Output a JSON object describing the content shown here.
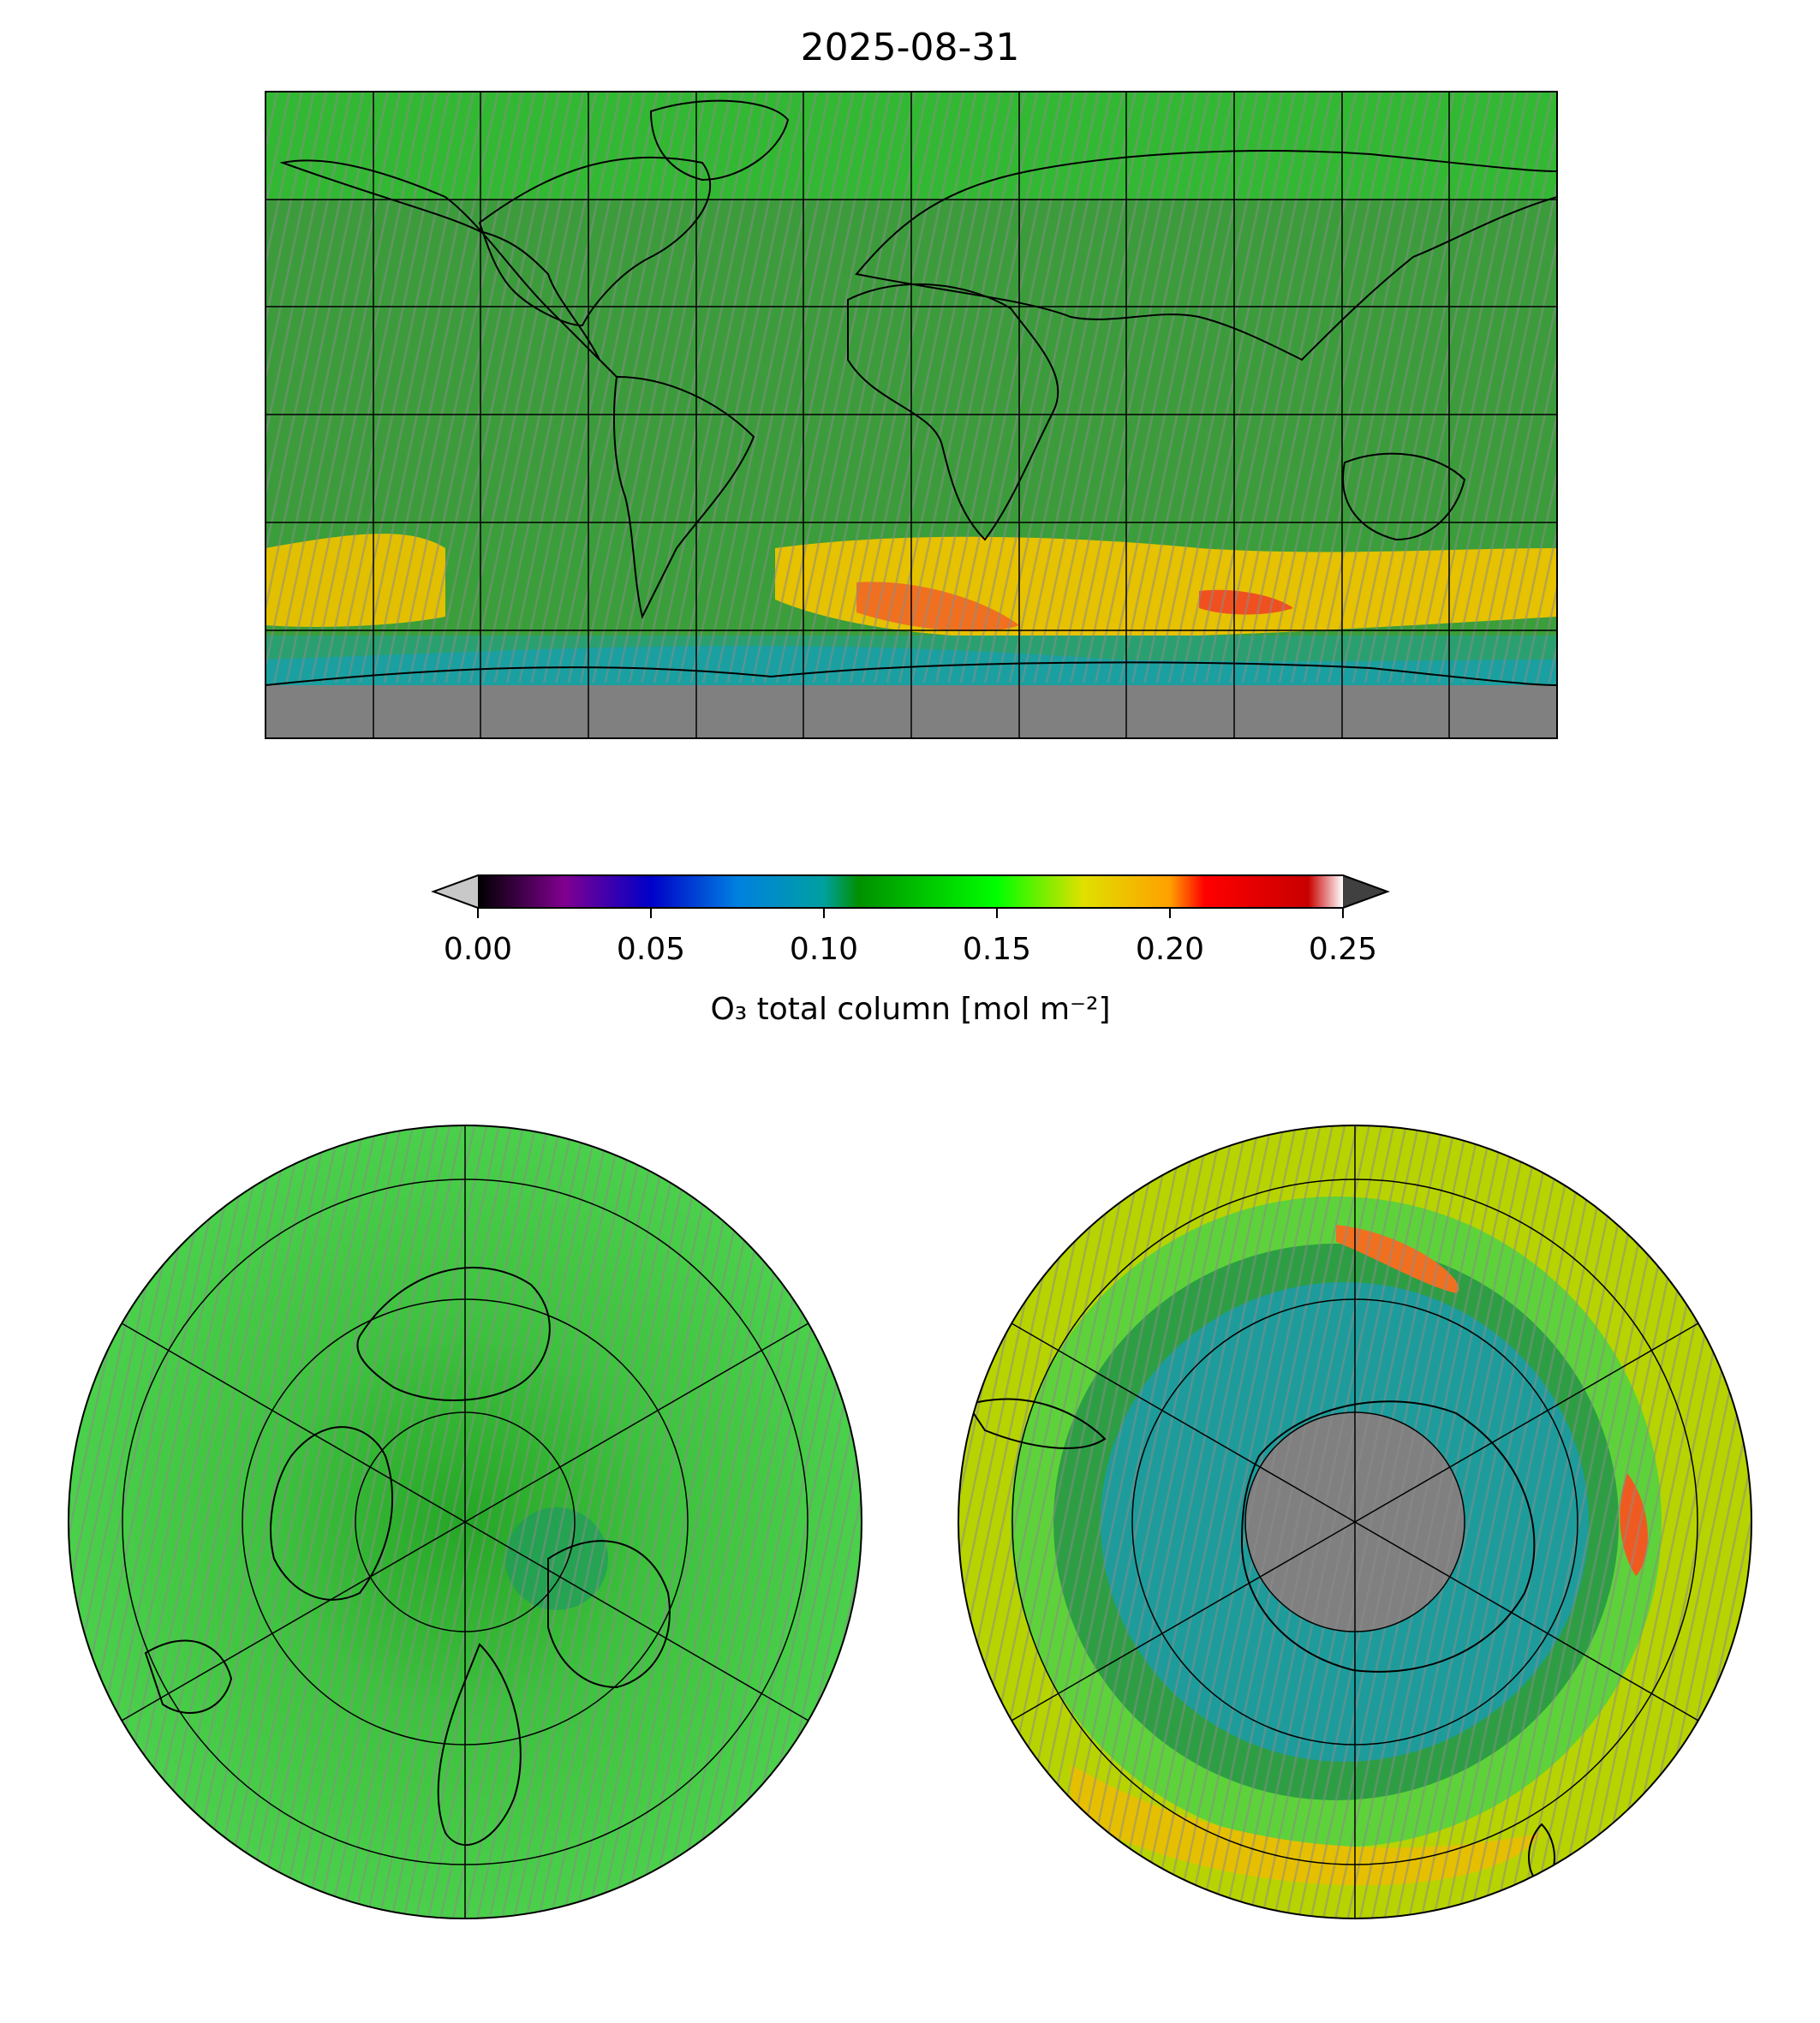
{
  "title": "2025-08-31",
  "colorbar": {
    "label": "O₃ total column [mol m⁻²]",
    "ticks": [
      "0.00",
      "0.05",
      "0.10",
      "0.15",
      "0.20",
      "0.25"
    ],
    "tick_values": [
      0.0,
      0.05,
      0.1,
      0.15,
      0.2,
      0.25
    ],
    "range": [
      0.0,
      0.25
    ],
    "extend": "both",
    "under_color": "#c8c8c8",
    "over_color": "#404040",
    "stops": [
      {
        "v": 0.0,
        "c": "#000000"
      },
      {
        "v": 0.025,
        "c": "#800090"
      },
      {
        "v": 0.05,
        "c": "#0000c8"
      },
      {
        "v": 0.075,
        "c": "#0080e0"
      },
      {
        "v": 0.1,
        "c": "#00a0a0"
      },
      {
        "v": 0.11,
        "c": "#009000"
      },
      {
        "v": 0.15,
        "c": "#00ff00"
      },
      {
        "v": 0.175,
        "c": "#e0e000"
      },
      {
        "v": 0.2,
        "c": "#ffa000"
      },
      {
        "v": 0.21,
        "c": "#ff0000"
      },
      {
        "v": 0.24,
        "c": "#c80000"
      },
      {
        "v": 0.25,
        "c": "#ffffff"
      }
    ]
  },
  "colors": {
    "missing": "#808080",
    "background_field": "#3aa83a",
    "high_band": "#e6c400",
    "ozone_hole": "#1aa0a0",
    "coastline": "#000000"
  },
  "panels": [
    {
      "name": "global",
      "projection": "plate-carree"
    },
    {
      "name": "north-pole",
      "projection": "north-polar-stereographic"
    },
    {
      "name": "south-pole",
      "projection": "south-polar-stereographic"
    }
  ]
}
